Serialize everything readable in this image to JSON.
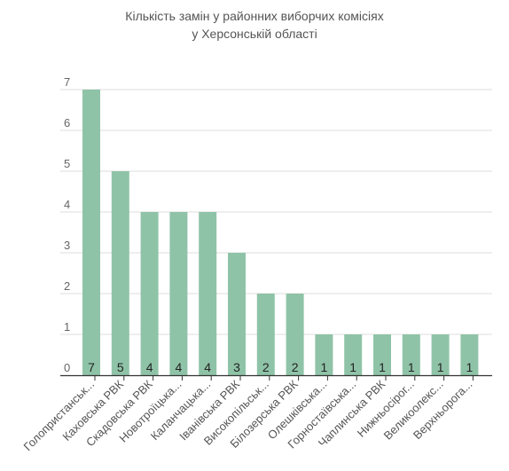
{
  "chart_data": {
    "type": "bar",
    "title_lines": [
      "Кількість замін у районних виборчих комісіях",
      "у Херсонській області"
    ],
    "xlabel": "",
    "ylabel": "",
    "ylim": [
      0,
      7
    ],
    "yticks": [
      0,
      1,
      2,
      3,
      4,
      5,
      6,
      7
    ],
    "grid": true,
    "legend": "none",
    "bar_color": "#8fc3a7",
    "categories": [
      "Голопристанськ...",
      "Каховська РВК",
      "Скадовська РВК",
      "Новотроїцька...",
      "Каланчацька...",
      "Іванівська РВК",
      "Високопільськ...",
      "Білозерська РВК",
      "Олешківська...",
      "Горностаївська...",
      "Чаплинська РВК",
      "Нижньосірог...",
      "Великоолекс...",
      "Верхньорога..."
    ],
    "values": [
      7,
      5,
      4,
      4,
      4,
      3,
      2,
      2,
      1,
      1,
      1,
      1,
      1,
      1
    ],
    "data_labels": [
      "7",
      "5",
      "4",
      "4",
      "4",
      "3",
      "2",
      "2",
      "1",
      "1",
      "1",
      "1",
      "1",
      "1"
    ]
  }
}
